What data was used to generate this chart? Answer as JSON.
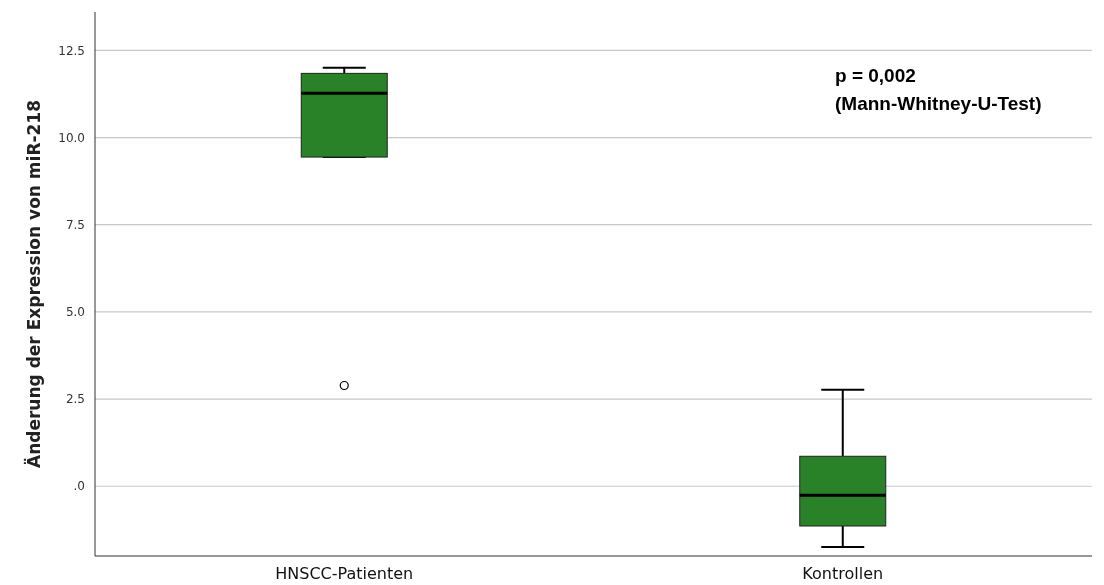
{
  "chart_data": {
    "type": "box",
    "ylabel": "Änderung der Expression von miR-218",
    "categories": [
      "HNSCC-Patienten",
      "Kontrollen"
    ],
    "series": [
      {
        "color": "#2a8228",
        "boxes": [
          {
            "low": 9.44,
            "q1": 9.44,
            "median": 11.27,
            "q3": 11.84,
            "high": 12.0,
            "outliers": [
              2.89
            ]
          },
          {
            "low": -1.74,
            "q1": -1.14,
            "median": -0.26,
            "q3": 0.86,
            "high": 2.77
          }
        ]
      }
    ],
    "ylim": [
      -2,
      13.6
    ],
    "yticks": [
      {
        "value": 0,
        "label": ".0"
      },
      {
        "value": 2.5,
        "label": "2.5"
      },
      {
        "value": 5,
        "label": "5.0"
      },
      {
        "value": 7.5,
        "label": "7.5"
      },
      {
        "value": 10,
        "label": "10.0"
      },
      {
        "value": 12.5,
        "label": "12.5"
      }
    ],
    "grid": "y",
    "annotations": [
      "p = 0,002",
      "(Mann-Whitney-U-Test)"
    ]
  }
}
